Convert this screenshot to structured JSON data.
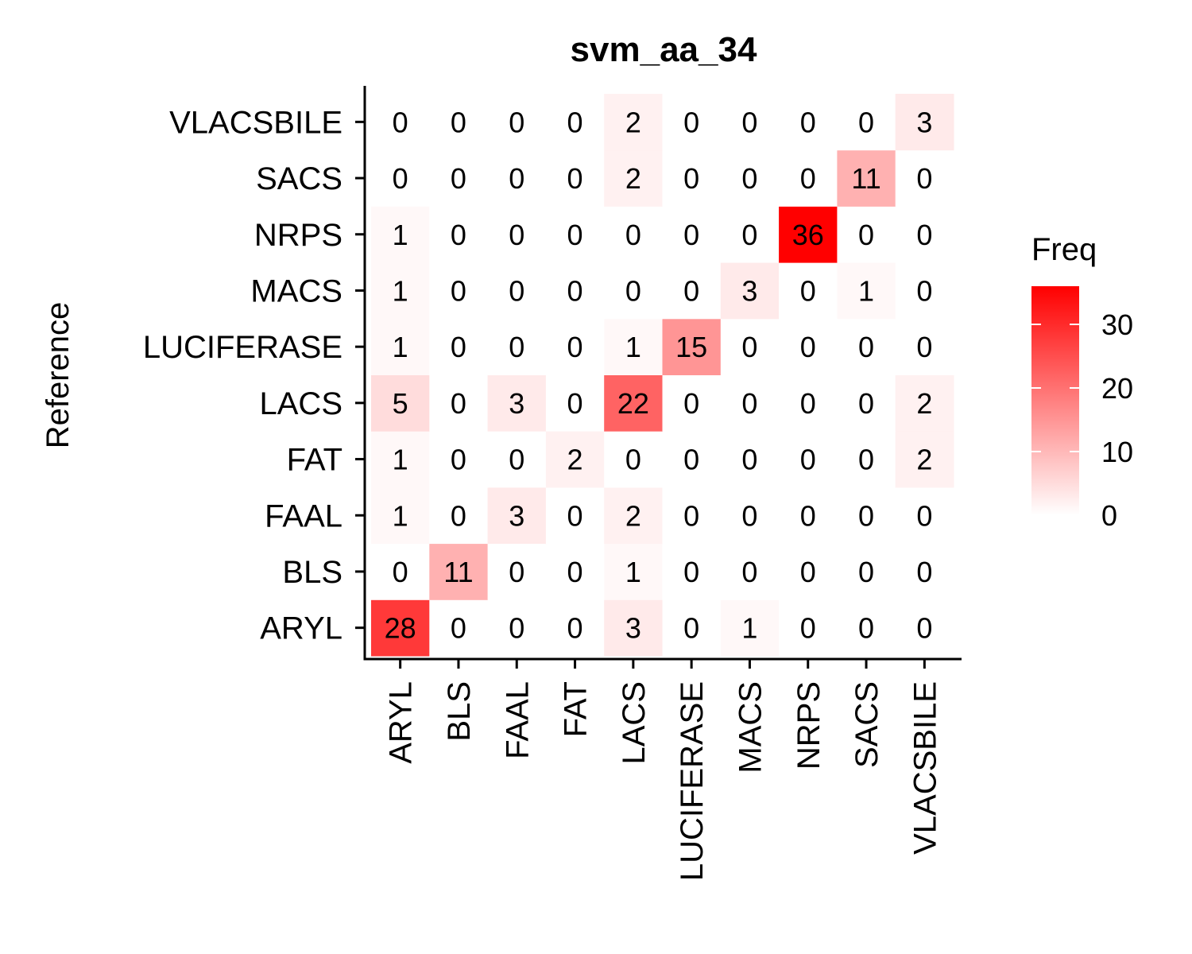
{
  "chart_data": {
    "type": "heatmap",
    "title": "svm_aa_34",
    "xlabel": "",
    "ylabel": "Reference",
    "x_categories": [
      "ARYL",
      "BLS",
      "FAAL",
      "FAT",
      "LACS",
      "LUCIFERASE",
      "MACS",
      "NRPS",
      "SACS",
      "VLACSBILE"
    ],
    "y_categories": [
      "ARYL",
      "BLS",
      "FAAL",
      "FAT",
      "LACS",
      "LUCIFERASE",
      "MACS",
      "NRPS",
      "SACS",
      "VLACSBILE"
    ],
    "values": [
      [
        28,
        0,
        0,
        0,
        3,
        0,
        1,
        0,
        0,
        0
      ],
      [
        0,
        11,
        0,
        0,
        1,
        0,
        0,
        0,
        0,
        0
      ],
      [
        1,
        0,
        3,
        0,
        2,
        0,
        0,
        0,
        0,
        0
      ],
      [
        1,
        0,
        0,
        2,
        0,
        0,
        0,
        0,
        0,
        2
      ],
      [
        5,
        0,
        3,
        0,
        22,
        0,
        0,
        0,
        0,
        2
      ],
      [
        1,
        0,
        0,
        0,
        1,
        15,
        0,
        0,
        0,
        0
      ],
      [
        1,
        0,
        0,
        0,
        0,
        0,
        3,
        0,
        1,
        0
      ],
      [
        1,
        0,
        0,
        0,
        0,
        0,
        0,
        36,
        0,
        0
      ],
      [
        0,
        0,
        0,
        0,
        2,
        0,
        0,
        0,
        11,
        0
      ],
      [
        0,
        0,
        0,
        0,
        2,
        0,
        0,
        0,
        0,
        3
      ]
    ],
    "color_scale": {
      "low": "#ffffff",
      "high": "#ff0000",
      "min": 0,
      "max": 36
    },
    "legend": {
      "title": "Freq",
      "ticks": [
        "0",
        "10",
        "20",
        "30"
      ],
      "tick_values": [
        0,
        10,
        20,
        30
      ],
      "placement": "right"
    },
    "grid": false
  }
}
